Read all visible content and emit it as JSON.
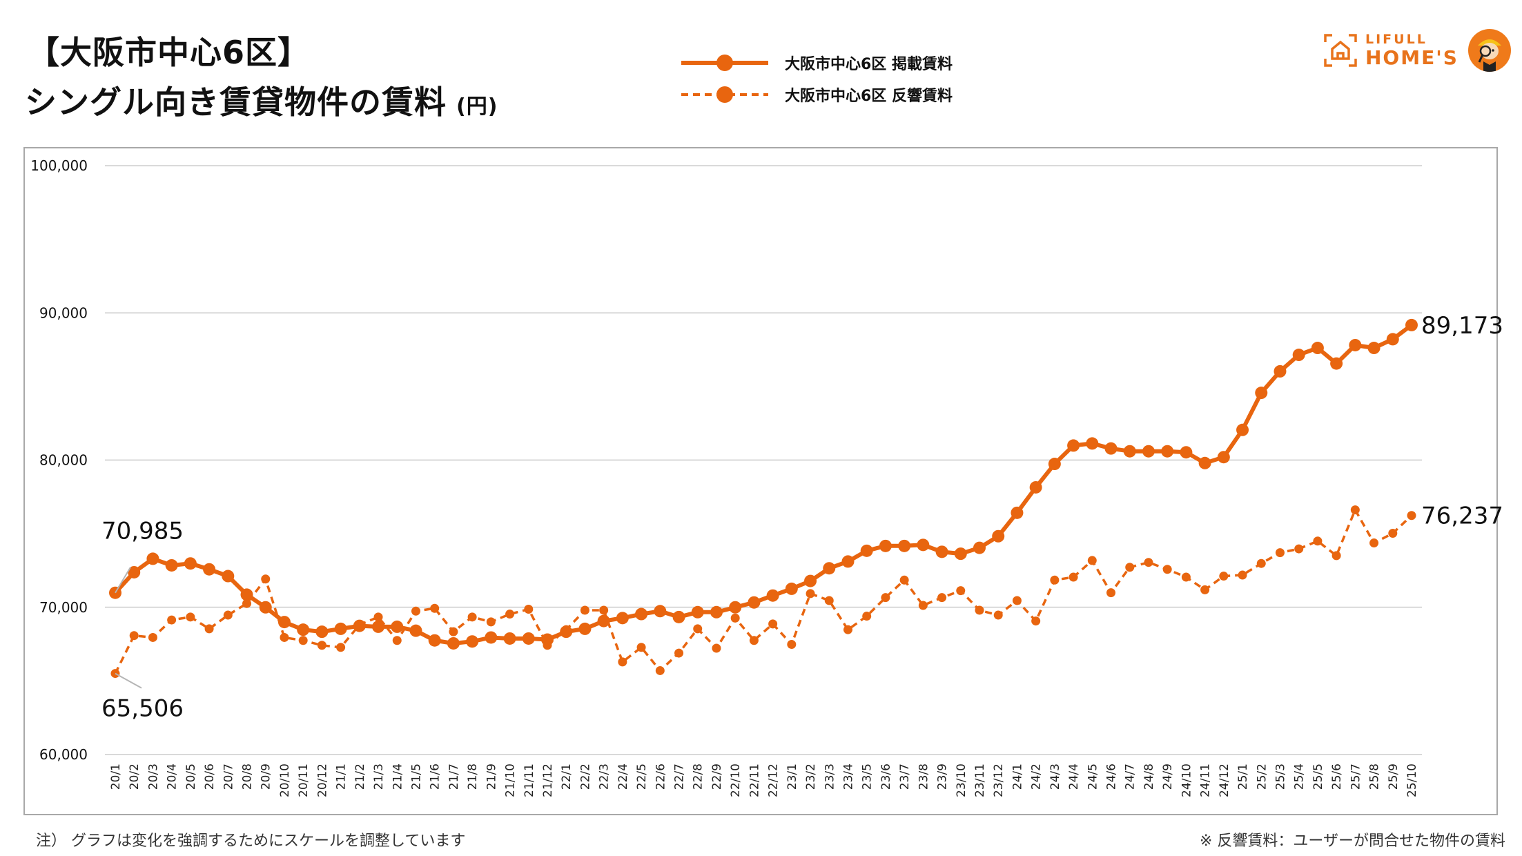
{
  "header": {
    "title_line1": "【大阪市中心6区】",
    "title_line2": "シングル向き賃貸物件の賃料",
    "unit": "(円)"
  },
  "legend": {
    "items": [
      {
        "label": "大阪市中心6区 掲載賃料",
        "style": "solid"
      },
      {
        "label": "大阪市中心6区 反響賃料",
        "style": "dashed"
      }
    ]
  },
  "logo": {
    "line1": "LIFULL",
    "line2": "HOME'S"
  },
  "colors": {
    "series": "#e8650f",
    "grid": "#d9d9d9",
    "frame": "#a8a8a8",
    "logo": "#e8731c"
  },
  "notes": {
    "left": "注）  グラフは変化を強調するためにスケールを調整しています",
    "right": "※ 反響賃料：ユーザーが問合せた物件の賃料"
  },
  "chart_data": {
    "type": "line",
    "title": "【大阪市中心6区】シングル向き賃貸物件の賃料 (円)",
    "xlabel": "",
    "ylabel": "円",
    "ylim": [
      60000,
      100000
    ],
    "yticks": [
      60000,
      70000,
      80000,
      90000,
      100000
    ],
    "ytick_labels": [
      "60,000",
      "70,000",
      "80,000",
      "90,000",
      "100,000"
    ],
    "grid": true,
    "legend_position": "top-center",
    "categories": [
      "20/1",
      "20/2",
      "20/3",
      "20/4",
      "20/5",
      "20/6",
      "20/7",
      "20/8",
      "20/9",
      "20/10",
      "20/11",
      "20/12",
      "21/1",
      "21/2",
      "21/3",
      "21/4",
      "21/5",
      "21/6",
      "21/7",
      "21/8",
      "21/9",
      "21/10",
      "21/11",
      "21/12",
      "22/1",
      "22/2",
      "22/3",
      "22/4",
      "22/5",
      "22/6",
      "22/7",
      "22/8",
      "22/9",
      "22/10",
      "22/11",
      "22/12",
      "23/1",
      "23/2",
      "23/3",
      "23/4",
      "23/5",
      "23/6",
      "23/7",
      "23/8",
      "23/9",
      "23/10",
      "23/11",
      "23/12",
      "24/1",
      "24/2",
      "24/3",
      "24/4",
      "24/5",
      "24/6",
      "24/7",
      "24/8",
      "24/9",
      "24/10",
      "24/11",
      "24/12",
      "25/1",
      "25/2",
      "25/3",
      "25/4",
      "25/5",
      "25/6",
      "25/7",
      "25/8",
      "25/9",
      "25/10"
    ],
    "series": [
      {
        "name": "大阪市中心6区 掲載賃料",
        "style": "solid",
        "values": [
          70985,
          72380,
          73300,
          72850,
          72980,
          72580,
          72120,
          70860,
          70000,
          69000,
          68480,
          68340,
          68540,
          68740,
          68680,
          68680,
          68410,
          67750,
          67550,
          67680,
          67950,
          67880,
          67880,
          67810,
          68340,
          68540,
          69070,
          69270,
          69540,
          69740,
          69340,
          69670,
          69670,
          70000,
          70330,
          70800,
          71260,
          71790,
          72650,
          73110,
          73840,
          74170,
          74170,
          74240,
          73770,
          73640,
          74040,
          74830,
          76420,
          78150,
          79740,
          80990,
          81130,
          80790,
          80600,
          80600,
          80600,
          80530,
          79800,
          80200,
          82050,
          84570,
          86030,
          87150,
          87620,
          86560,
          87810,
          87620,
          88210,
          89173
        ]
      },
      {
        "name": "大阪市中心6区 反響賃料",
        "style": "dashed",
        "values": [
          65506,
          68080,
          67950,
          69140,
          69340,
          68540,
          69470,
          70260,
          71920,
          67950,
          67750,
          67420,
          67280,
          68810,
          69340,
          67750,
          69740,
          69930,
          68340,
          69340,
          69010,
          69540,
          69870,
          67420,
          68480,
          69800,
          69800,
          66290,
          67280,
          65700,
          66890,
          68540,
          67220,
          69270,
          67750,
          68870,
          67480,
          70930,
          70460,
          68480,
          69400,
          70660,
          71850,
          70130,
          70660,
          71130,
          69800,
          69470,
          70460,
          69070,
          71850,
          72050,
          73180,
          70990,
          72720,
          73050,
          72580,
          72050,
          71190,
          72120,
          72190,
          72980,
          73710,
          73970,
          74500,
          73510,
          76620,
          74370,
          75030,
          76237
        ]
      }
    ],
    "annotations": [
      {
        "series": 0,
        "index": 0,
        "text": "70,985"
      },
      {
        "series": 1,
        "index": 0,
        "text": "65,506"
      },
      {
        "series": 0,
        "index": 69,
        "text": "89,173"
      },
      {
        "series": 1,
        "index": 69,
        "text": "76,237"
      }
    ]
  }
}
